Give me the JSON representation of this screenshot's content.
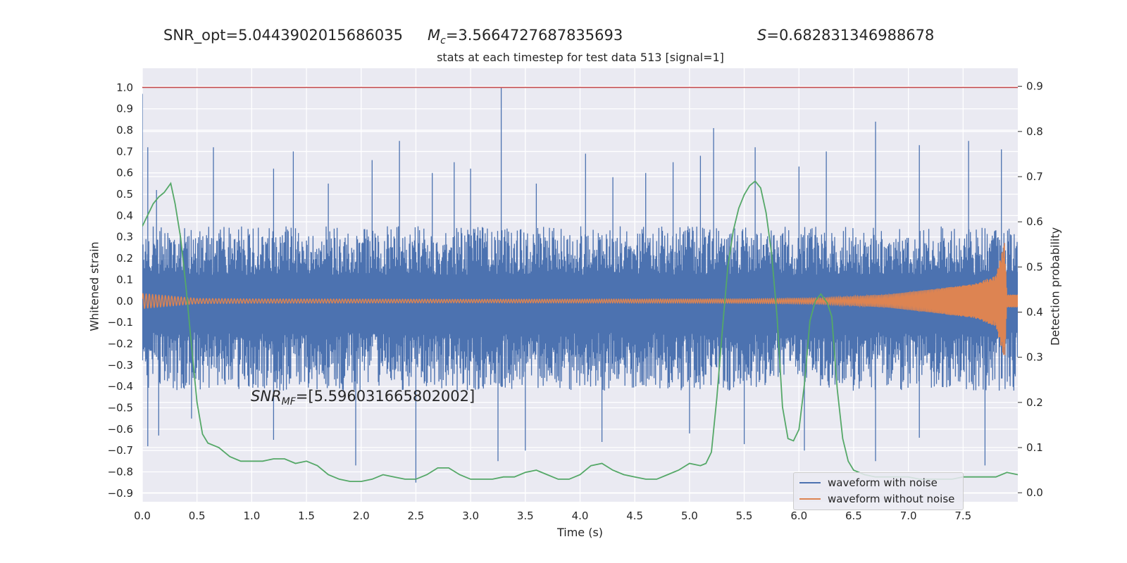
{
  "header": {
    "snr_opt": "SNR_opt=5.0443902015686035",
    "mc_symbol": "M",
    "mc_sub": "c",
    "mc_value": "=3.5664727687835693",
    "s_symbol": "S",
    "s_value": "=0.682831346988678"
  },
  "annotation": {
    "snr_mf_symbol": "SNR",
    "snr_mf_sub": "MF",
    "snr_mf_value": "=[5.596031665802002]"
  },
  "colors": {
    "background": "#eaeaf2",
    "grid": "#ffffff",
    "noise": "#4c72b0",
    "clean": "#dd8452",
    "probability": "#55a868",
    "threshold": "#c44e52"
  },
  "chart_data": {
    "type": "line",
    "title": "stats at each timestep for test data 513 [signal=1]",
    "xlabel": "Time (s)",
    "ylabel": "Whitened strain",
    "ylabel_right": "Detection probability",
    "xlim": [
      0.0,
      8.0
    ],
    "ylim": [
      -0.94,
      1.09
    ],
    "ylim_right": [
      -0.02,
      0.94
    ],
    "x_ticks": [
      "0.0",
      "0.5",
      "1.0",
      "1.5",
      "2.0",
      "2.5",
      "3.0",
      "3.5",
      "4.0",
      "4.5",
      "5.0",
      "5.5",
      "6.0",
      "6.5",
      "7.0",
      "7.5"
    ],
    "y_ticks": [
      "1.0",
      "0.9",
      "0.8",
      "0.7",
      "0.6",
      "0.5",
      "0.4",
      "0.3",
      "0.2",
      "0.1",
      "0.0",
      "−0.1",
      "−0.2",
      "−0.3",
      "−0.4",
      "−0.5",
      "−0.6",
      "−0.7",
      "−0.8",
      "−0.9"
    ],
    "y_ticks_right": [
      "0.9",
      "0.8",
      "0.7",
      "0.6",
      "0.5",
      "0.4",
      "0.3",
      "0.2",
      "0.1",
      "0.0"
    ],
    "threshold": 1.0,
    "grid": true,
    "legend_position": "lower-right",
    "series": [
      {
        "name": "waveform with noise",
        "axis": "left",
        "envelope_upper": 0.35,
        "envelope_lower": -0.42,
        "spikes_up": [
          [
            0.0,
            0.97
          ],
          [
            0.05,
            0.72
          ],
          [
            0.13,
            0.52
          ],
          [
            0.65,
            0.72
          ],
          [
            1.2,
            0.62
          ],
          [
            1.38,
            0.7
          ],
          [
            1.7,
            0.55
          ],
          [
            2.1,
            0.66
          ],
          [
            2.35,
            0.75
          ],
          [
            2.65,
            0.6
          ],
          [
            2.85,
            0.65
          ],
          [
            3.0,
            0.62
          ],
          [
            3.28,
            1.0
          ],
          [
            3.6,
            0.55
          ],
          [
            4.05,
            0.69
          ],
          [
            4.3,
            0.58
          ],
          [
            4.6,
            0.6
          ],
          [
            4.85,
            0.65
          ],
          [
            5.1,
            0.68
          ],
          [
            5.22,
            0.81
          ],
          [
            5.6,
            0.72
          ],
          [
            6.0,
            0.63
          ],
          [
            6.25,
            0.7
          ],
          [
            6.7,
            0.84
          ],
          [
            7.1,
            0.73
          ],
          [
            7.55,
            0.75
          ],
          [
            7.85,
            0.71
          ]
        ],
        "spikes_down": [
          [
            0.05,
            -0.68
          ],
          [
            0.15,
            -0.63
          ],
          [
            0.45,
            -0.55
          ],
          [
            1.2,
            -0.65
          ],
          [
            1.95,
            -0.77
          ],
          [
            2.5,
            -0.85
          ],
          [
            3.25,
            -0.75
          ],
          [
            3.5,
            -0.7
          ],
          [
            4.2,
            -0.66
          ],
          [
            5.0,
            -0.62
          ],
          [
            5.5,
            -0.67
          ],
          [
            6.05,
            -0.7
          ],
          [
            6.7,
            -0.75
          ],
          [
            7.1,
            -0.64
          ],
          [
            7.7,
            -0.77
          ]
        ]
      },
      {
        "name": "waveform without noise",
        "axis": "left",
        "amplitude_envelope": [
          [
            0.0,
            0.035
          ],
          [
            0.5,
            0.012
          ],
          [
            1.0,
            0.01
          ],
          [
            3.0,
            0.008
          ],
          [
            5.5,
            0.01
          ],
          [
            6.2,
            0.014
          ],
          [
            6.8,
            0.03
          ],
          [
            7.3,
            0.06
          ],
          [
            7.6,
            0.08
          ],
          [
            7.8,
            0.12
          ],
          [
            7.88,
            0.28
          ],
          [
            7.9,
            0.03
          ],
          [
            8.0,
            0.03
          ]
        ]
      },
      {
        "name": "",
        "axis": "right",
        "x": [
          0.0,
          0.05,
          0.1,
          0.15,
          0.2,
          0.26,
          0.3,
          0.35,
          0.4,
          0.45,
          0.5,
          0.55,
          0.6,
          0.7,
          0.8,
          0.9,
          1.0,
          1.1,
          1.2,
          1.3,
          1.4,
          1.5,
          1.6,
          1.7,
          1.8,
          1.9,
          2.0,
          2.1,
          2.2,
          2.3,
          2.4,
          2.5,
          2.6,
          2.7,
          2.8,
          2.9,
          3.0,
          3.1,
          3.2,
          3.3,
          3.4,
          3.5,
          3.6,
          3.7,
          3.8,
          3.9,
          4.0,
          4.1,
          4.2,
          4.3,
          4.4,
          4.5,
          4.6,
          4.7,
          4.8,
          4.9,
          5.0,
          5.1,
          5.15,
          5.2,
          5.25,
          5.3,
          5.35,
          5.4,
          5.45,
          5.5,
          5.55,
          5.6,
          5.65,
          5.7,
          5.75,
          5.8,
          5.85,
          5.9,
          5.95,
          6.0,
          6.05,
          6.1,
          6.15,
          6.2,
          6.26,
          6.3,
          6.35,
          6.4,
          6.45,
          6.5,
          6.55,
          6.6,
          6.7,
          6.8,
          6.9,
          7.0,
          7.1,
          7.2,
          7.3,
          7.4,
          7.5,
          7.6,
          7.7,
          7.8,
          7.9,
          8.0
        ],
        "y": [
          0.59,
          0.615,
          0.64,
          0.655,
          0.665,
          0.685,
          0.64,
          0.565,
          0.455,
          0.325,
          0.2,
          0.13,
          0.11,
          0.1,
          0.08,
          0.07,
          0.07,
          0.07,
          0.075,
          0.075,
          0.065,
          0.07,
          0.06,
          0.04,
          0.03,
          0.025,
          0.025,
          0.03,
          0.04,
          0.035,
          0.03,
          0.03,
          0.04,
          0.055,
          0.055,
          0.04,
          0.03,
          0.03,
          0.03,
          0.035,
          0.035,
          0.045,
          0.05,
          0.04,
          0.03,
          0.03,
          0.04,
          0.06,
          0.065,
          0.05,
          0.04,
          0.035,
          0.03,
          0.03,
          0.04,
          0.05,
          0.065,
          0.06,
          0.065,
          0.09,
          0.21,
          0.36,
          0.5,
          0.58,
          0.63,
          0.66,
          0.68,
          0.69,
          0.675,
          0.62,
          0.53,
          0.39,
          0.19,
          0.12,
          0.115,
          0.14,
          0.24,
          0.38,
          0.425,
          0.44,
          0.42,
          0.39,
          0.23,
          0.12,
          0.07,
          0.05,
          0.045,
          0.04,
          0.035,
          0.035,
          0.035,
          0.035,
          0.03,
          0.03,
          0.03,
          0.03,
          0.035,
          0.035,
          0.035,
          0.035,
          0.045,
          0.04
        ]
      }
    ]
  },
  "legend": {
    "noise_label": "waveform with noise",
    "clean_label": "waveform without noise"
  }
}
